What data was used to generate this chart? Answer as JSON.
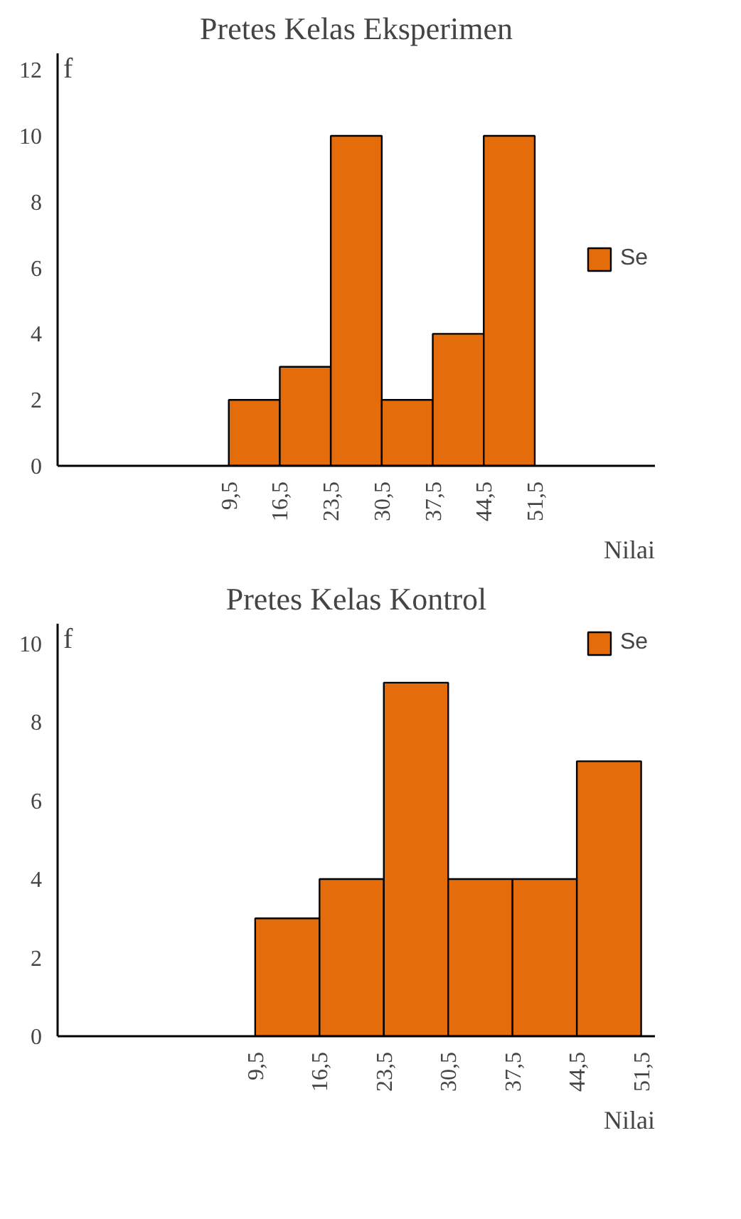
{
  "chart_data": [
    {
      "type": "histogram",
      "title": "Pretes Kelas Eksperimen",
      "xlabel": "Nilai",
      "ylabel": "f",
      "bins": [
        9.5,
        16.5,
        23.5,
        30.5,
        37.5,
        44.5,
        51.5
      ],
      "series": [
        {
          "name": "Se",
          "color": "#e46c0a",
          "values": [
            2,
            3,
            10,
            2,
            4,
            10
          ]
        }
      ],
      "xlim": [
        -14,
        68
      ],
      "xticks": [
        {
          "value": 9.5,
          "label": "9,5"
        },
        {
          "value": 16.5,
          "label": "16,5"
        },
        {
          "value": 23.5,
          "label": "23,5"
        },
        {
          "value": 30.5,
          "label": "30,5"
        },
        {
          "value": 37.5,
          "label": "37,5"
        },
        {
          "value": 44.5,
          "label": "44,5"
        },
        {
          "value": 51.5,
          "label": "51,5"
        }
      ],
      "ylim": [
        0,
        12.5
      ],
      "yticks": [
        0,
        2,
        4,
        6,
        8,
        10,
        12
      ],
      "legend": "right"
    },
    {
      "type": "histogram",
      "title": "Pretes Kelas Kontrol",
      "xlabel": "Nilai",
      "ylabel": "f",
      "bins": [
        9.5,
        16.5,
        23.5,
        30.5,
        37.5,
        44.5,
        51.5
      ],
      "series": [
        {
          "name": "Se",
          "color": "#e46c0a",
          "values": [
            3,
            4,
            9,
            4,
            4,
            7
          ]
        }
      ],
      "xlim": [
        -12,
        53
      ],
      "xticks": [
        {
          "value": 9.5,
          "label": "9,5"
        },
        {
          "value": 16.5,
          "label": "16,5"
        },
        {
          "value": 23.5,
          "label": "23,5"
        },
        {
          "value": 30.5,
          "label": "30,5"
        },
        {
          "value": 37.5,
          "label": "37,5"
        },
        {
          "value": 44.5,
          "label": "44,5"
        },
        {
          "value": 51.5,
          "label": "51,5"
        }
      ],
      "ylim": [
        0,
        10.5
      ],
      "yticks": [
        0,
        2,
        4,
        6,
        8,
        10
      ],
      "legend": "top right"
    }
  ]
}
